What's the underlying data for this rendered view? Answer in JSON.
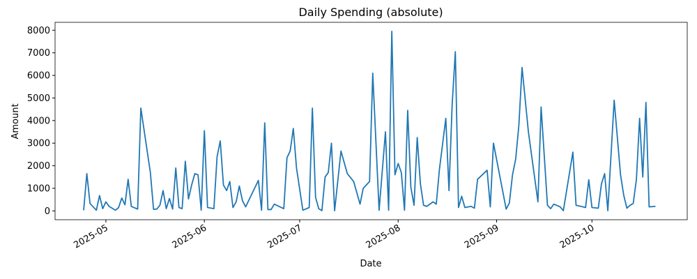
{
  "chart_data": {
    "type": "line",
    "title": "Daily Spending (absolute)",
    "x_label": "Date",
    "y_label": "Amount",
    "color": "#1f77b4",
    "grid": false,
    "x": [
      114,
      115,
      116,
      118,
      119,
      120,
      121,
      122,
      124,
      125,
      126,
      127,
      128,
      129,
      131,
      132,
      135,
      136,
      137,
      138,
      139,
      140,
      141,
      142,
      143,
      144,
      145,
      146,
      147,
      148,
      149,
      150,
      151,
      152,
      153,
      155,
      156,
      157,
      158,
      159,
      160,
      161,
      162,
      163,
      164,
      165,
      169,
      170,
      171,
      172,
      173,
      174,
      177,
      178,
      179,
      180,
      181,
      183,
      185,
      186,
      187,
      188,
      189,
      190,
      191,
      192,
      193,
      195,
      197,
      199,
      201,
      202,
      204,
      205,
      207,
      209,
      210,
      211,
      212,
      213,
      214,
      215,
      216,
      217,
      218,
      219,
      220,
      221,
      222,
      224,
      225,
      226,
      228,
      229,
      230,
      231,
      232,
      233,
      234,
      236,
      237,
      238,
      241,
      242,
      243,
      247,
      248,
      249,
      250,
      251,
      252,
      254,
      257,
      258,
      260,
      261,
      262,
      264,
      265,
      268,
      269,
      272,
      273,
      274,
      276,
      277,
      278,
      279,
      281,
      283,
      284,
      285,
      286,
      287,
      288,
      289,
      290,
      291,
      292,
      294
    ],
    "values": [
      30,
      1650,
      330,
      30,
      680,
      100,
      400,
      200,
      30,
      150,
      570,
      270,
      1400,
      200,
      80,
      4550,
      1700,
      70,
      80,
      250,
      900,
      100,
      550,
      80,
      1900,
      150,
      100,
      2200,
      530,
      1150,
      1650,
      1600,
      30,
      3550,
      150,
      100,
      2400,
      3100,
      1150,
      900,
      1300,
      150,
      400,
      1100,
      450,
      180,
      1350,
      30,
      3900,
      60,
      60,
      300,
      100,
      2350,
      2650,
      3650,
      1900,
      30,
      150,
      4550,
      600,
      100,
      10,
      1500,
      1700,
      3000,
      10,
      2650,
      1650,
      1300,
      300,
      1000,
      1300,
      6100,
      30,
      3500,
      30,
      7950,
      1600,
      2100,
      1700,
      30,
      4450,
      1050,
      250,
      3250,
      1200,
      250,
      200,
      400,
      300,
      1850,
      4100,
      900,
      4700,
      7050,
      150,
      650,
      150,
      200,
      120,
      1400,
      1800,
      180,
      3000,
      80,
      350,
      1600,
      2300,
      3800,
      6350,
      3500,
      400,
      4600,
      250,
      100,
      300,
      180,
      10,
      2600,
      250,
      150,
      1380,
      150,
      120,
      1200,
      1650,
      10,
      4900,
      1600,
      700,
      120,
      250,
      330,
      1400,
      4100,
      1500,
      4800,
      180,
      200
    ],
    "xlim": [
      105,
      304
    ],
    "xticks": [
      {
        "value": 121,
        "label": "2025-05"
      },
      {
        "value": 152,
        "label": "2025-06"
      },
      {
        "value": 182,
        "label": "2025-07"
      },
      {
        "value": 213,
        "label": "2025-08"
      },
      {
        "value": 244,
        "label": "2025-09"
      },
      {
        "value": 274,
        "label": "2025-10"
      }
    ],
    "ylim": [
      -390,
      8350
    ],
    "yticks": [
      0,
      1000,
      2000,
      3000,
      4000,
      5000,
      6000,
      7000,
      8000
    ]
  }
}
